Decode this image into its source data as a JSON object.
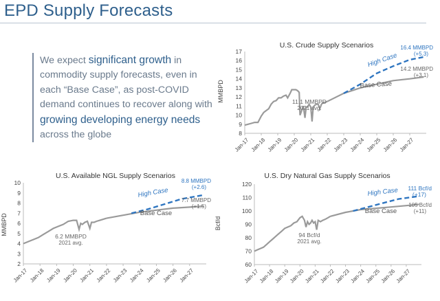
{
  "slide": {
    "title": "EPD Supply Forecasts",
    "callout": {
      "p1": "We expect ",
      "hl1": "significant growth",
      "p2": " in commodity supply forecasts, even in each “Base Case”, as post-COVID demand continues to recover along with ",
      "hl2": "growing developing energy needs",
      "p3": " across the globe"
    }
  },
  "colors": {
    "history": "#9a9a9a",
    "base": "#9a9a9a",
    "high": "#2e75c0",
    "title": "#2e5f8c"
  },
  "chart_data": [
    {
      "type": "line",
      "title": "U.S. Crude Supply Scenarios",
      "ylabel": "MMBPD",
      "ylim": [
        8,
        17
      ],
      "yticks": [
        8,
        9,
        10,
        11,
        12,
        13,
        14,
        15,
        16,
        17
      ],
      "xlim": [
        2017.0,
        2028.0
      ],
      "xticks": [
        2017,
        2018,
        2019,
        2020,
        2021,
        2022,
        2023,
        2024,
        2025,
        2026,
        2027
      ],
      "xticklabels": [
        "Jan-17",
        "Jan-18",
        "Jan-19",
        "Jan-20",
        "Jan-21",
        "Jan-22",
        "Jan-23",
        "Jan-24",
        "Jan-25",
        "Jan-26",
        "Jan-27"
      ],
      "series": [
        {
          "name": "History",
          "style": "history",
          "x": [
            2017.0,
            2017.2,
            2017.4,
            2017.6,
            2017.8,
            2018.0,
            2018.15,
            2018.3,
            2018.45,
            2018.6,
            2018.75,
            2018.9,
            2019.05,
            2019.2,
            2019.35,
            2019.5,
            2019.6,
            2019.75,
            2019.85,
            2020.0,
            2020.1,
            2020.2,
            2020.3,
            2020.35,
            2020.45,
            2020.55,
            2020.65,
            2020.72,
            2020.8,
            2020.9,
            2021.0,
            2021.08,
            2021.15,
            2021.25,
            2021.35,
            2021.45,
            2021.55,
            2021.65,
            2021.75,
            2021.85,
            2022.0
          ],
          "values": [
            8.9,
            9.0,
            9.1,
            9.2,
            9.2,
            9.9,
            10.3,
            10.5,
            10.7,
            11.2,
            11.5,
            11.6,
            11.9,
            11.9,
            12.1,
            12.2,
            11.9,
            12.4,
            12.8,
            12.8,
            12.8,
            12.7,
            12.5,
            10.0,
            10.5,
            11.0,
            9.7,
            10.9,
            10.9,
            11.2,
            10.9,
            9.3,
            10.9,
            11.1,
            11.2,
            11.2,
            10.7,
            11.2,
            11.4,
            11.4,
            11.5
          ]
        },
        {
          "name": "Base Case",
          "style": "base",
          "x": [
            2022.0,
            2023.0,
            2024.0,
            2025.0,
            2026.0,
            2027.0,
            2027.85
          ],
          "values": [
            11.5,
            12.4,
            13.0,
            13.4,
            13.8,
            14.0,
            14.2
          ]
        },
        {
          "name": "High Case",
          "style": "high",
          "x": [
            2023.0,
            2024.0,
            2025.0,
            2026.0,
            2027.0,
            2027.85
          ],
          "values": [
            12.4,
            13.4,
            14.6,
            15.4,
            16.1,
            16.4
          ]
        }
      ],
      "annotations": {
        "high_label": "High Case",
        "base_label": "Base Case",
        "high_val_1": "16.4 MMBPD",
        "high_val_2": "(+5.3)",
        "base_val_1": "14.2 MMBPD",
        "base_val_2": "(+3.1)",
        "avg_1": "11.1 MMBPD",
        "avg_2": "2021 avg."
      }
    },
    {
      "type": "line",
      "title": "U.S. Available NGL Supply Scenarios",
      "ylabel": "MMBPD",
      "ylim": [
        2,
        10
      ],
      "yticks": [
        2,
        3,
        4,
        5,
        6,
        7,
        8,
        9,
        10
      ],
      "xlim": [
        2017.0,
        2028.0
      ],
      "xticks": [
        2017,
        2018,
        2019,
        2020,
        2021,
        2022,
        2023,
        2024,
        2025,
        2026,
        2027
      ],
      "xticklabels": [
        "Jan-17",
        "Jan-18",
        "Jan-19",
        "Jan-20",
        "Jan-21",
        "Jan-22",
        "Jan-23",
        "Jan-24",
        "Jan-25",
        "Jan-26",
        "Jan-27"
      ],
      "series": [
        {
          "name": "History",
          "style": "history",
          "x": [
            2017.0,
            2017.3,
            2017.6,
            2017.9,
            2018.2,
            2018.5,
            2018.8,
            2019.1,
            2019.4,
            2019.7,
            2020.0,
            2020.2,
            2020.35,
            2020.45,
            2020.55,
            2020.7,
            2020.85,
            2021.0,
            2021.1,
            2021.25,
            2021.4,
            2021.6,
            2021.8,
            2022.0
          ],
          "values": [
            4.0,
            4.2,
            4.4,
            4.6,
            4.9,
            5.2,
            5.5,
            5.7,
            5.9,
            6.2,
            6.3,
            6.3,
            5.4,
            6.0,
            5.9,
            6.1,
            6.2,
            5.5,
            6.1,
            6.1,
            6.2,
            6.3,
            6.4,
            6.5
          ]
        },
        {
          "name": "Base Case",
          "style": "base",
          "x": [
            2022.0,
            2023.0,
            2024.0,
            2025.0,
            2026.0,
            2027.0,
            2027.85
          ],
          "values": [
            6.5,
            6.8,
            7.1,
            7.3,
            7.5,
            7.6,
            7.7
          ]
        },
        {
          "name": "High Case",
          "style": "high",
          "x": [
            2023.5,
            2024.5,
            2025.5,
            2026.5,
            2027.85
          ],
          "values": [
            7.0,
            7.4,
            7.9,
            8.4,
            8.8
          ]
        }
      ],
      "annotations": {
        "high_label": "High Case",
        "base_label": "Base Case",
        "high_val_1": "8.8 MMBPD",
        "high_val_2": "(+2.6)",
        "base_val_1": "7.7 MMBPD",
        "base_val_2": "(+1.5)",
        "avg_1": "6.2 MMBPD",
        "avg_2": "2021 avg."
      }
    },
    {
      "type": "line",
      "title": "U.S. Dry Natural Gas Supply Scenarios",
      "ylabel": "Bcf/d",
      "ylim": [
        60,
        120
      ],
      "yticks": [
        60,
        70,
        80,
        90,
        100,
        110,
        120
      ],
      "xlim": [
        2017.0,
        2028.0
      ],
      "xticks": [
        2017,
        2018,
        2019,
        2020,
        2021,
        2022,
        2023,
        2024,
        2025,
        2026,
        2027
      ],
      "xticklabels": [
        "Jan-17",
        "Jan-18",
        "Jan-19",
        "Jan-20",
        "Jan-21",
        "Jan-22",
        "Jan-23",
        "Jan-24",
        "Jan-25",
        "Jan-26",
        "Jan-27"
      ],
      "series": [
        {
          "name": "History",
          "style": "history",
          "x": [
            2017.0,
            2017.2,
            2017.4,
            2017.6,
            2017.8,
            2018.0,
            2018.2,
            2018.4,
            2018.6,
            2018.8,
            2019.0,
            2019.2,
            2019.4,
            2019.6,
            2019.8,
            2020.0,
            2020.15,
            2020.3,
            2020.4,
            2020.5,
            2020.6,
            2020.7,
            2020.8,
            2020.9,
            2021.0,
            2021.1,
            2021.2,
            2021.35,
            2021.5,
            2021.7,
            2021.85,
            2022.0
          ],
          "values": [
            70,
            71,
            72,
            73,
            75,
            77,
            79,
            81,
            83,
            85,
            87,
            88,
            89,
            91,
            92,
            95,
            96,
            93,
            88,
            92,
            90,
            91,
            93,
            91,
            92,
            86,
            93,
            92,
            93,
            94,
            95,
            96
          ]
        },
        {
          "name": "Base Case",
          "style": "base",
          "x": [
            2022.0,
            2023.0,
            2024.0,
            2025.0,
            2026.0,
            2027.0,
            2027.85
          ],
          "values": [
            96,
            99,
            101,
            102,
            103,
            104,
            105
          ]
        },
        {
          "name": "High Case",
          "style": "high",
          "x": [
            2023.5,
            2024.5,
            2025.5,
            2026.5,
            2027.85
          ],
          "values": [
            100,
            103,
            106,
            109,
            111
          ]
        }
      ],
      "annotations": {
        "high_label": "High Case",
        "base_label": "Base Case",
        "high_val_1": "111 Bcf/d",
        "high_val_2": "(+17)",
        "base_val_1": "105 Bcf/d",
        "base_val_2": "(+11)",
        "avg_1": "94 Bcf/d",
        "avg_2": "2021 avg."
      }
    }
  ]
}
